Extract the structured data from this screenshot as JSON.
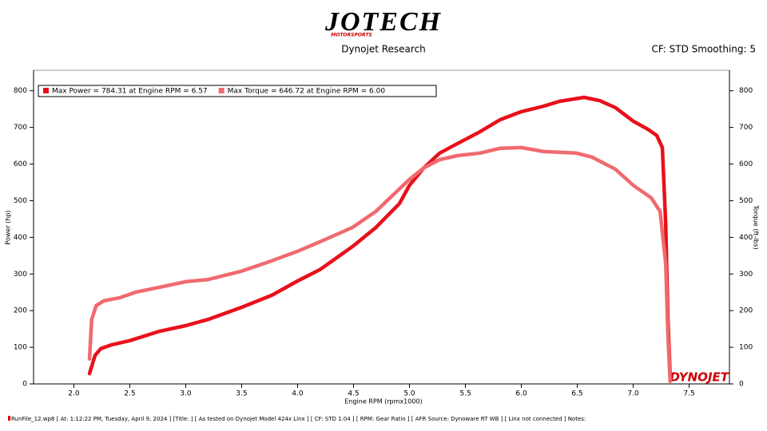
{
  "header": {
    "logo": "JOTECH",
    "logo_sub": "MOTORSPORTS",
    "subtitle": "Dynojet Research",
    "settings": "CF: STD Smoothing: 5",
    "watermark": "DYNOJET"
  },
  "footer": "RunFile_12.wp8  [ At: 1:12:22 PM, Tuesday, April 9, 2024 ]  [Title: ]  [ As tested on Dynojet Model 424x Linx ]  [ CF: STD 1.04 ]  [ RPM: Gear Ratio ]  [ AFR Source: Dynoware RT WB ]  [ Linx not connected ]  Notes:",
  "chart_data": {
    "type": "line",
    "xlabel": "Engine RPM (rpmx1000)",
    "ylabel": "Power (hp)",
    "y2label": "Torque (ft-lbs)",
    "xlim": [
      1.64,
      7.86
    ],
    "ylim": [
      0,
      856
    ],
    "y2lim": [
      0,
      856
    ],
    "xticks": [
      {
        "value": 2,
        "label": "2.0"
      },
      2.5,
      {
        "value": 3,
        "label": "3.0"
      },
      3.5,
      {
        "value": 4,
        "label": "4.0"
      },
      4.5,
      {
        "value": 5,
        "label": "5.0"
      },
      5.5,
      {
        "value": 6,
        "label": "6.0"
      },
      6.5,
      {
        "value": 7,
        "label": "7.0"
      },
      7.5
    ],
    "yticks": [
      0,
      100,
      200,
      300,
      400,
      500,
      600,
      700,
      800
    ],
    "y2ticks": [
      0,
      100,
      200,
      300,
      400,
      500,
      600,
      700,
      800
    ],
    "grid": false,
    "legend": "top-left",
    "series": [
      {
        "name": "Max Power = 784.31 at Engine RPM = 6.57",
        "color": "#e8101a",
        "axis": "y",
        "x": [
          2.14,
          2.19,
          2.24,
          2.34,
          2.5,
          2.77,
          3.0,
          3.2,
          3.5,
          3.77,
          4.0,
          4.2,
          4.5,
          4.7,
          4.91,
          5.0,
          5.13,
          5.27,
          5.43,
          5.63,
          5.81,
          6.0,
          6.2,
          6.34,
          6.56,
          6.7,
          6.84,
          7.0,
          7.13,
          7.21,
          7.26,
          7.29,
          7.31,
          7.33
        ],
        "values": [
          28,
          78,
          96,
          107,
          118,
          144,
          159,
          176,
          209,
          242,
          281,
          312,
          377,
          427,
          492,
          542,
          590,
          630,
          656,
          688,
          721,
          743,
          758,
          771,
          782,
          773,
          754,
          717,
          695,
          678,
          645,
          438,
          176,
          24
        ]
      },
      {
        "name": "Max Torque = 646.72 at Engine RPM = 6.00",
        "color": "#f06a6e",
        "axis": "y2",
        "x": [
          2.14,
          2.16,
          2.2,
          2.27,
          2.41,
          2.56,
          2.77,
          3.0,
          3.2,
          3.49,
          3.77,
          4.0,
          4.2,
          4.49,
          4.7,
          4.91,
          5.0,
          5.13,
          5.27,
          5.43,
          5.63,
          5.81,
          6.0,
          6.2,
          6.49,
          6.63,
          6.84,
          7.0,
          7.16,
          7.24,
          7.29,
          7.31,
          7.33
        ],
        "values": [
          68,
          176,
          214,
          227,
          235,
          251,
          264,
          279,
          285,
          307,
          336,
          362,
          388,
          427,
          471,
          532,
          558,
          590,
          612,
          623,
          630,
          643,
          645,
          634,
          630,
          619,
          586,
          542,
          508,
          471,
          329,
          133,
          7
        ]
      }
    ]
  }
}
